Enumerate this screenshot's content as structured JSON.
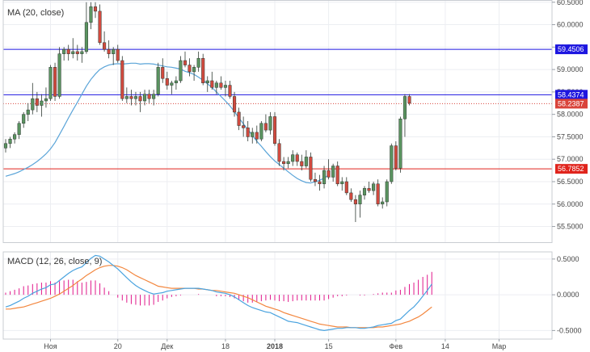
{
  "chart_data": [
    {
      "type": "candlestick",
      "title": "MA (20, close)",
      "ylim": [
        55.15,
        60.55
      ],
      "yticks": [
        "60.5000",
        "60.0000",
        "59.5000",
        "59.0000",
        "58.5000",
        "58.0000",
        "57.5000",
        "57.0000",
        "56.5000",
        "56.0000",
        "55.5000"
      ],
      "x_labels": [
        {
          "i": 10,
          "label": "Ноя",
          "bold": false
        },
        {
          "i": 25,
          "label": "20",
          "bold": false
        },
        {
          "i": 36,
          "label": "Дек",
          "bold": false
        },
        {
          "i": 49,
          "label": "18",
          "bold": false
        },
        {
          "i": 60,
          "label": "2018",
          "bold": true
        },
        {
          "i": 72,
          "label": "15",
          "bold": false
        },
        {
          "i": 87,
          "label": "Фев",
          "bold": false
        },
        {
          "i": 98,
          "label": "14",
          "bold": false
        },
        {
          "i": 110,
          "label": "Мар",
          "bold": false
        }
      ],
      "ohlc": [
        [
          57.25,
          57.45,
          57.15,
          57.35
        ],
        [
          57.35,
          57.5,
          57.25,
          57.45
        ],
        [
          57.45,
          57.6,
          57.35,
          57.55
        ],
        [
          57.55,
          57.85,
          57.45,
          57.8
        ],
        [
          57.8,
          58.05,
          57.7,
          58
        ],
        [
          58,
          58.25,
          57.85,
          58.1
        ],
        [
          58.1,
          58.7,
          58,
          58.35
        ],
        [
          58.35,
          58.5,
          58.05,
          58.2
        ],
        [
          58.2,
          58.45,
          57.95,
          58.3
        ],
        [
          58.3,
          58.6,
          58.15,
          58.35
        ],
        [
          58.35,
          59.1,
          58.3,
          59.05
        ],
        [
          59.05,
          59.15,
          58.3,
          58.4
        ],
        [
          58.4,
          59.5,
          58.35,
          59.35
        ],
        [
          59.35,
          59.5,
          59.2,
          59.45
        ],
        [
          59.45,
          59.55,
          59.2,
          59.35
        ],
        [
          59.35,
          59.7,
          59.25,
          59.4
        ],
        [
          59.4,
          59.55,
          59.2,
          59.35
        ],
        [
          59.35,
          59.5,
          59.15,
          59.4
        ],
        [
          59.4,
          60.5,
          59.35,
          60.05
        ],
        [
          60.05,
          60.5,
          59.9,
          60.4
        ],
        [
          60.4,
          60.5,
          60.15,
          60.3
        ],
        [
          60.3,
          60.45,
          59.55,
          59.6
        ],
        [
          59.6,
          59.85,
          59.4,
          59.45
        ],
        [
          59.45,
          59.65,
          59.25,
          59.35
        ],
        [
          59.35,
          59.5,
          59.1,
          59.45
        ],
        [
          59.45,
          59.55,
          59.15,
          59.2
        ],
        [
          59.2,
          59.3,
          58.3,
          58.35
        ],
        [
          58.35,
          58.6,
          58.25,
          58.4
        ],
        [
          58.4,
          58.55,
          58.2,
          58.35
        ],
        [
          58.35,
          58.5,
          58.2,
          58.4
        ],
        [
          58.4,
          58.5,
          58.05,
          58.3
        ],
        [
          58.3,
          58.55,
          58.2,
          58.45
        ],
        [
          58.45,
          58.55,
          58.25,
          58.35
        ],
        [
          58.35,
          58.55,
          58.2,
          58.45
        ],
        [
          58.45,
          59.15,
          58.4,
          59.05
        ],
        [
          59.05,
          59.25,
          58.7,
          58.8
        ],
        [
          58.8,
          58.95,
          58.55,
          58.65
        ],
        [
          58.65,
          58.75,
          58.45,
          58.7
        ],
        [
          58.7,
          58.85,
          58.55,
          58.75
        ],
        [
          58.75,
          59.3,
          58.7,
          59.2
        ],
        [
          59.2,
          59.4,
          59.05,
          59.1
        ],
        [
          59.1,
          59.25,
          58.85,
          58.95
        ],
        [
          58.95,
          59.1,
          58.75,
          59.05
        ],
        [
          59.05,
          59.4,
          58.95,
          59.25
        ],
        [
          59.25,
          59.35,
          58.65,
          58.7
        ],
        [
          58.7,
          58.85,
          58.5,
          58.75
        ],
        [
          58.75,
          58.95,
          58.55,
          58.6
        ],
        [
          58.6,
          58.75,
          58.45,
          58.7
        ],
        [
          58.7,
          58.85,
          58.55,
          58.6
        ],
        [
          58.6,
          58.75,
          58.4,
          58.65
        ],
        [
          58.65,
          58.75,
          58.35,
          58.4
        ],
        [
          58.4,
          58.5,
          57.95,
          58.05
        ],
        [
          58.05,
          58.15,
          57.65,
          57.75
        ],
        [
          57.75,
          57.95,
          57.5,
          57.7
        ],
        [
          57.7,
          57.85,
          57.4,
          57.5
        ],
        [
          57.5,
          57.7,
          57.35,
          57.6
        ],
        [
          57.6,
          57.75,
          57.35,
          57.45
        ],
        [
          57.45,
          57.85,
          57.4,
          57.8
        ],
        [
          57.8,
          58,
          57.6,
          57.65
        ],
        [
          57.65,
          58.05,
          57.55,
          57.95
        ],
        [
          57.95,
          58.05,
          57.3,
          57.35
        ],
        [
          57.35,
          57.45,
          56.85,
          56.95
        ],
        [
          56.95,
          57.05,
          56.75,
          56.9
        ],
        [
          56.9,
          57.05,
          56.8,
          56.95
        ],
        [
          56.95,
          57.2,
          56.85,
          57.1
        ],
        [
          57.1,
          57.15,
          56.85,
          56.95
        ],
        [
          56.95,
          57.1,
          56.75,
          56.85
        ],
        [
          56.85,
          57.2,
          56.8,
          57.05
        ],
        [
          57.05,
          57.15,
          56.5,
          56.55
        ],
        [
          56.55,
          56.7,
          56.4,
          56.5
        ],
        [
          56.5,
          56.65,
          56.3,
          56.45
        ],
        [
          56.45,
          56.85,
          56.35,
          56.75
        ],
        [
          56.75,
          57,
          56.55,
          56.6
        ],
        [
          56.6,
          56.9,
          56.5,
          56.85
        ],
        [
          56.85,
          56.95,
          56.4,
          56.45
        ],
        [
          56.45,
          56.6,
          56.3,
          56.5
        ],
        [
          56.5,
          56.6,
          56.2,
          56.25
        ],
        [
          56.25,
          56.35,
          56.05,
          56.1
        ],
        [
          56.1,
          56.2,
          55.6,
          56
        ],
        [
          56,
          56.3,
          55.7,
          56.2
        ],
        [
          56.2,
          56.4,
          56.1,
          56.35
        ],
        [
          56.35,
          56.5,
          56.25,
          56.3
        ],
        [
          56.3,
          56.5,
          56.2,
          56.45
        ],
        [
          56.45,
          56.55,
          55.95,
          56
        ],
        [
          56,
          56.15,
          55.9,
          56.05
        ],
        [
          56.05,
          56.55,
          55.95,
          56.5
        ],
        [
          56.5,
          57.35,
          56.45,
          57.3
        ],
        [
          57.3,
          57.4,
          56.75,
          56.8
        ],
        [
          56.8,
          57.95,
          56.7,
          57.9
        ],
        [
          57.9,
          58.45,
          57.5,
          58.4
        ],
        [
          58.4,
          58.45,
          58.2,
          58.25
        ]
      ],
      "ma20": [
        56.62,
        56.65,
        56.68,
        56.72,
        56.77,
        56.82,
        56.88,
        56.95,
        57.03,
        57.12,
        57.23,
        57.37,
        57.55,
        57.73,
        57.92,
        58.1,
        58.27,
        58.45,
        58.63,
        58.78,
        58.9,
        59.0,
        59.06,
        59.1,
        59.12,
        59.13,
        59.12,
        59.13,
        59.14,
        59.14,
        59.12,
        59.13,
        59.13,
        59.12,
        59.1,
        59.08,
        59.06,
        59.05,
        59.03,
        59.01,
        58.96,
        58.93,
        58.89,
        58.83,
        58.76,
        58.68,
        58.6,
        58.5,
        58.4,
        58.3,
        58.19,
        58.06,
        57.92,
        57.79,
        57.66,
        57.53,
        57.4,
        57.29,
        57.17,
        57.06,
        56.96,
        56.88,
        56.8,
        56.72,
        56.64,
        56.57,
        56.52,
        56.48,
        56.47,
        56.5,
        56.53,
        56.58,
        56.65
      ],
      "ma20_start": 0,
      "levels": [
        {
          "value": 59.4506,
          "label": "59.4506",
          "color": "#1d16e0",
          "style": "solid"
        },
        {
          "value": 58.4374,
          "label": "58.4374",
          "color": "#1d16e0",
          "style": "solid"
        },
        {
          "value": 58.2387,
          "label": "58.2387",
          "color": "#d9443b",
          "style": "dotted"
        },
        {
          "value": 56.7852,
          "label": "56.7852",
          "color": "#e0241c",
          "style": "solid"
        }
      ],
      "colors": {
        "up": "#5a9460",
        "down": "#d24a3f",
        "ma": "#5aa4d8"
      }
    },
    {
      "type": "line",
      "title": "MACD (12, 26, close, 9)",
      "ylim": [
        -0.62,
        0.6
      ],
      "yticks": [
        "0.5000",
        "0.0000",
        "-0.5000"
      ],
      "macd": [
        -0.17,
        -0.15,
        -0.12,
        -0.09,
        -0.05,
        -0.02,
        0.02,
        0.05,
        0.08,
        0.1,
        0.14,
        0.15,
        0.2,
        0.25,
        0.3,
        0.34,
        0.37,
        0.39,
        0.45,
        0.51,
        0.55,
        0.54,
        0.5,
        0.46,
        0.41,
        0.36,
        0.3,
        0.24,
        0.18,
        0.13,
        0.09,
        0.06,
        0.03,
        0.01,
        0.02,
        0.03,
        0.05,
        0.06,
        0.07,
        0.08,
        0.09,
        0.09,
        0.09,
        0.09,
        0.08,
        0.07,
        0.06,
        0.04,
        0.03,
        0.02,
        0.0,
        -0.03,
        -0.07,
        -0.11,
        -0.15,
        -0.18,
        -0.2,
        -0.22,
        -0.24,
        -0.25,
        -0.28,
        -0.31,
        -0.34,
        -0.37,
        -0.38,
        -0.39,
        -0.41,
        -0.43,
        -0.45,
        -0.47,
        -0.49,
        -0.5,
        -0.49,
        -0.48,
        -0.47,
        -0.47,
        -0.46,
        -0.46,
        -0.46,
        -0.47,
        -0.47,
        -0.46,
        -0.45,
        -0.43,
        -0.42,
        -0.41,
        -0.4,
        -0.36,
        -0.34,
        -0.28,
        -0.22,
        -0.17,
        -0.1,
        -0.02,
        0.06,
        0.15
      ],
      "signal": [
        -0.2,
        -0.2,
        -0.19,
        -0.18,
        -0.17,
        -0.15,
        -0.13,
        -0.11,
        -0.09,
        -0.07,
        -0.05,
        -0.02,
        0.01,
        0.05,
        0.09,
        0.13,
        0.18,
        0.22,
        0.27,
        0.31,
        0.35,
        0.38,
        0.4,
        0.41,
        0.41,
        0.4,
        0.38,
        0.35,
        0.31,
        0.27,
        0.24,
        0.21,
        0.18,
        0.15,
        0.12,
        0.11,
        0.1,
        0.09,
        0.09,
        0.09,
        0.09,
        0.09,
        0.09,
        0.08,
        0.08,
        0.07,
        0.06,
        0.06,
        0.05,
        0.04,
        0.03,
        0.02,
        0.0,
        -0.02,
        -0.04,
        -0.07,
        -0.1,
        -0.13,
        -0.16,
        -0.18,
        -0.2,
        -0.22,
        -0.25,
        -0.27,
        -0.29,
        -0.31,
        -0.33,
        -0.35,
        -0.37,
        -0.39,
        -0.41,
        -0.42,
        -0.43,
        -0.44,
        -0.45,
        -0.45,
        -0.45,
        -0.46,
        -0.46,
        -0.46,
        -0.46,
        -0.46,
        -0.46,
        -0.45,
        -0.45,
        -0.44,
        -0.43,
        -0.42,
        -0.41,
        -0.39,
        -0.37,
        -0.34,
        -0.31,
        -0.27,
        -0.22,
        -0.17
      ],
      "colors": {
        "macd": "#4aa3df",
        "signal": "#f3873f",
        "hist": "#e0178a"
      }
    }
  ]
}
